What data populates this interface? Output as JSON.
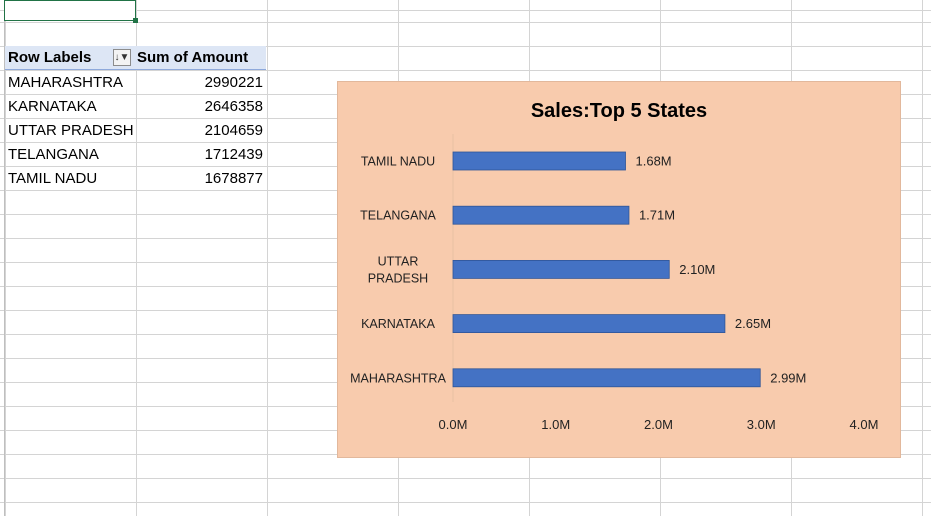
{
  "pivot": {
    "header_row_labels": "Row Labels",
    "header_sum": "Sum of Amount",
    "filter_glyph": "↓▼",
    "rows": [
      {
        "label": "MAHARASHTRA",
        "value": "2990221"
      },
      {
        "label": "KARNATAKA",
        "value": "2646358"
      },
      {
        "label": "UTTAR PRADESH",
        "value": "2104659"
      },
      {
        "label": "TELANGANA",
        "value": "1712439"
      },
      {
        "label": "TAMIL NADU",
        "value": "1678877"
      }
    ]
  },
  "chart_data": {
    "type": "bar",
    "orientation": "horizontal",
    "title": "Sales:Top 5 States",
    "categories": [
      "TAMIL NADU",
      "TELANGANA",
      "UTTAR PRADESH",
      "KARNATAKA",
      "MAHARASHTRA"
    ],
    "values": [
      1678877,
      1712439,
      2104659,
      2646358,
      2990221
    ],
    "data_labels": [
      "1.68M",
      "1.71M",
      "2.10M",
      "2.65M",
      "2.99M"
    ],
    "x_ticks": [
      "0.0M",
      "1.0M",
      "2.0M",
      "3.0M",
      "4.0M"
    ],
    "xlim": [
      0,
      4000000
    ],
    "xlabel": "",
    "ylabel": "",
    "grid": false,
    "legend": false,
    "colors": {
      "bar": "#4472c4",
      "background": "#f8cbad"
    }
  }
}
